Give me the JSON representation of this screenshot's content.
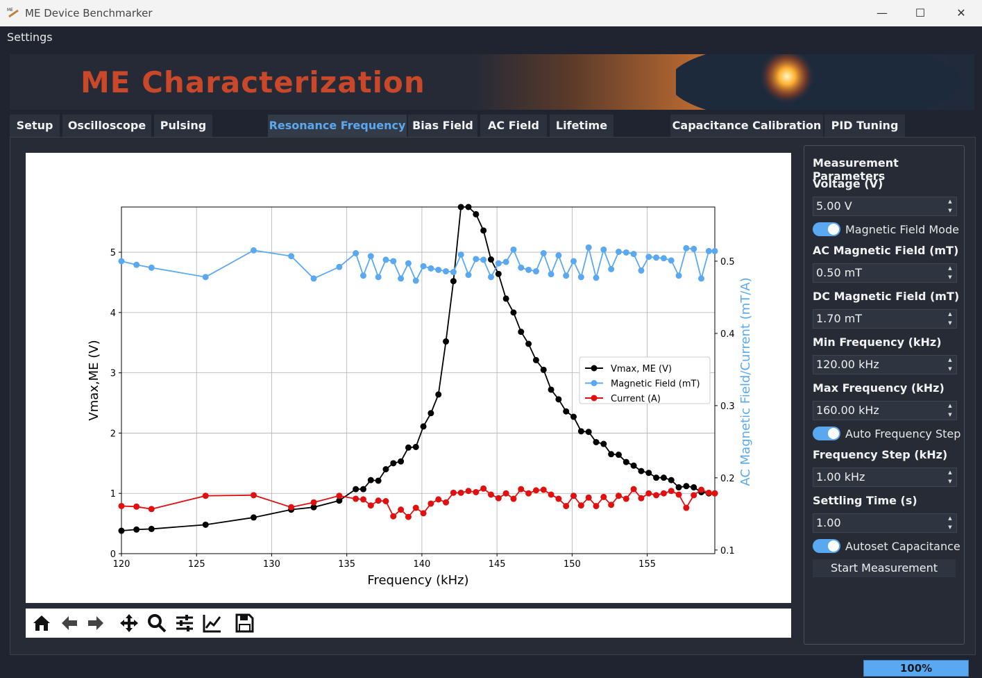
{
  "window": {
    "title": "ME Device Benchmarker",
    "minimize": "—",
    "maximize": "☐",
    "close": "✕"
  },
  "menu": {
    "settings": "Settings"
  },
  "banner": {
    "title": "ME Characterization"
  },
  "tabs": [
    "Setup",
    "Oscilloscope",
    "Pulsing",
    "Resonance Frequency",
    "Bias Field",
    "AC Field",
    "Lifetime",
    "Capacitance Calibration",
    "PID Tuning"
  ],
  "active_tab": "Resonance Frequency",
  "panel": {
    "heading": "Measurement Parameters",
    "voltage_label": "Voltage (V)",
    "voltage_value": "5.00 V",
    "magnetic_field_mode": "Magnetic Field Mode",
    "ac_label": "AC Magnetic Field (mT)",
    "ac_value": "0.50 mT",
    "dc_label": "DC Magnetic Field (mT)",
    "dc_value": "1.70 mT",
    "min_freq_label": "Min Frequency (kHz)",
    "min_freq_value": "120.00 kHz",
    "max_freq_label": "Max Frequency (kHz)",
    "max_freq_value": "160.00 kHz",
    "auto_step": "Auto Frequency Step",
    "step_label": "Frequency Step (kHz)",
    "step_value": "1.00 kHz",
    "settling_label": "Settling Time (s)",
    "settling_value": "1.00",
    "autoset_cap": "Autoset Capacitance",
    "start": "Start Measurement"
  },
  "progress": {
    "value": 100,
    "label": "100%"
  },
  "colors": {
    "accent": "#5aa9f0",
    "banner_title": "#c9482a",
    "vmax": "#000000",
    "field": "#5aa9f0",
    "current": "#e01010"
  },
  "chart_data": {
    "type": "line",
    "xlabel": "Frequency (kHz)",
    "ylabel": "Vmax,ME (V)",
    "y2label": "AC Magnetic Field/Current (mT/A)",
    "xlim": [
      120,
      159.5
    ],
    "ylim": [
      0,
      5.75
    ],
    "y2lim": [
      0.095,
      0.575
    ],
    "xticks": [
      120,
      125,
      130,
      135,
      140,
      145,
      150,
      155
    ],
    "yticks": [
      0,
      1,
      2,
      3,
      4,
      5
    ],
    "y2ticks": [
      0.1,
      0.2,
      0.3,
      0.4,
      0.5
    ],
    "grid": true,
    "legend_position": "center-right",
    "x": [
      120,
      121,
      122,
      125.6,
      128.8,
      131.3,
      132.8,
      134.5,
      135.6,
      136.1,
      136.6,
      137.1,
      137.6,
      138.1,
      138.6,
      139.1,
      139.6,
      140.1,
      140.6,
      141.1,
      141.6,
      142.1,
      142.6,
      143.1,
      143.6,
      144.1,
      144.6,
      145.1,
      145.6,
      146.1,
      146.6,
      147.1,
      147.6,
      148.1,
      148.6,
      149.1,
      149.6,
      150.1,
      150.6,
      151.1,
      151.6,
      152.1,
      152.6,
      153.1,
      153.6,
      154.1,
      154.6,
      155.1,
      155.6,
      156.1,
      156.6,
      157.1,
      157.6,
      158.1,
      158.6,
      159.1,
      159.5
    ],
    "series": [
      {
        "name": "Vmax, ME (V)",
        "axis": "left",
        "values": [
          0.38,
          0.4,
          0.41,
          0.48,
          0.6,
          0.73,
          0.77,
          0.88,
          1.07,
          1.07,
          1.22,
          1.21,
          1.4,
          1.5,
          1.53,
          1.76,
          1.77,
          2.11,
          2.33,
          2.64,
          3.52,
          4.52,
          5.75,
          5.75,
          5.63,
          5.36,
          4.88,
          4.64,
          4.23,
          4.0,
          3.68,
          3.48,
          3.21,
          3.05,
          2.72,
          2.56,
          2.36,
          2.27,
          2.03,
          2.02,
          1.85,
          1.82,
          1.65,
          1.64,
          1.52,
          1.46,
          1.37,
          1.34,
          1.26,
          1.26,
          1.22,
          1.1,
          1.12,
          1.1,
          1.02,
          1.0,
          1.0
        ]
      },
      {
        "name": "Magnetic Field (mT)",
        "axis": "right",
        "values": [
          0.5,
          0.495,
          0.491,
          0.478,
          0.515,
          0.507,
          0.476,
          0.492,
          0.511,
          0.48,
          0.507,
          0.478,
          0.502,
          0.5,
          0.476,
          0.497,
          0.473,
          0.493,
          0.49,
          0.488,
          0.486,
          0.485,
          0.509,
          0.481,
          0.503,
          0.502,
          0.478,
          0.497,
          0.499,
          0.516,
          0.491,
          0.488,
          0.486,
          0.511,
          0.482,
          0.508,
          0.48,
          0.5,
          0.478,
          0.519,
          0.477,
          0.516,
          0.489,
          0.513,
          0.512,
          0.51,
          0.487,
          0.506,
          0.505,
          0.504,
          0.501,
          0.48,
          0.518,
          0.517,
          0.476,
          0.514,
          0.514
        ]
      },
      {
        "name": "Current (A)",
        "axis": "left",
        "values": [
          0.79,
          0.78,
          0.74,
          0.96,
          0.97,
          0.77,
          0.85,
          0.96,
          0.91,
          0.9,
          0.8,
          0.88,
          0.87,
          0.62,
          0.73,
          0.61,
          0.76,
          0.67,
          0.83,
          0.9,
          0.85,
          1.01,
          1.01,
          1.04,
          1.02,
          1.08,
          0.98,
          0.92,
          1.0,
          0.91,
          1.07,
          1.0,
          1.05,
          1.06,
          0.98,
          0.91,
          0.79,
          0.96,
          0.8,
          0.93,
          0.79,
          0.94,
          0.81,
          0.96,
          0.91,
          1.07,
          0.92,
          1.0,
          0.97,
          1.0,
          1.04,
          0.98,
          0.76,
          0.97,
          1.06,
          1.01,
          1.0
        ]
      }
    ]
  }
}
